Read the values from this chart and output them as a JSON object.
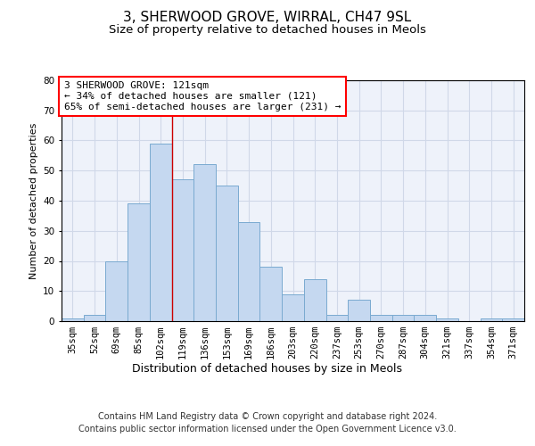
{
  "title1": "3, SHERWOOD GROVE, WIRRAL, CH47 9SL",
  "title2": "Size of property relative to detached houses in Meols",
  "xlabel": "Distribution of detached houses by size in Meols",
  "ylabel": "Number of detached properties",
  "categories": [
    "35sqm",
    "52sqm",
    "69sqm",
    "85sqm",
    "102sqm",
    "119sqm",
    "136sqm",
    "153sqm",
    "169sqm",
    "186sqm",
    "203sqm",
    "220sqm",
    "237sqm",
    "253sqm",
    "270sqm",
    "287sqm",
    "304sqm",
    "321sqm",
    "337sqm",
    "354sqm",
    "371sqm"
  ],
  "values": [
    1,
    2,
    20,
    39,
    59,
    47,
    52,
    45,
    33,
    18,
    9,
    14,
    2,
    7,
    2,
    2,
    2,
    1,
    0,
    1,
    1
  ],
  "bar_color": "#c5d8f0",
  "bar_edge_color": "#7aaad0",
  "vline_x_index": 5,
  "annotation_text": "3 SHERWOOD GROVE: 121sqm\n← 34% of detached houses are smaller (121)\n65% of semi-detached houses are larger (231) →",
  "annotation_box_color": "white",
  "annotation_box_edge_color": "red",
  "ylim": [
    0,
    80
  ],
  "yticks": [
    0,
    10,
    20,
    30,
    40,
    50,
    60,
    70,
    80
  ],
  "grid_color": "#d0d8e8",
  "background_color": "#eef2fa",
  "footer1": "Contains HM Land Registry data © Crown copyright and database right 2024.",
  "footer2": "Contains public sector information licensed under the Open Government Licence v3.0.",
  "title_fontsize": 11,
  "subtitle_fontsize": 9.5,
  "xlabel_fontsize": 9,
  "ylabel_fontsize": 8,
  "tick_fontsize": 7.5,
  "annotation_fontsize": 8,
  "footer_fontsize": 7
}
